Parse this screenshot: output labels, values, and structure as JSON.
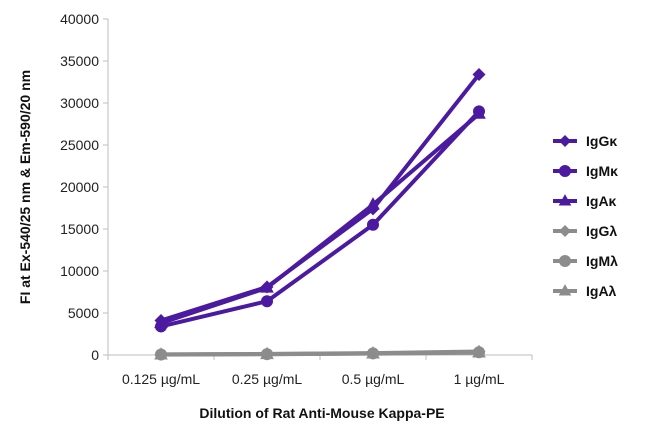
{
  "chart_data": {
    "type": "line",
    "title": "",
    "xlabel": "Dilution of Rat Anti-Mouse Kappa-PE",
    "ylabel": "FI at Ex-540/25 nm & Em-590/20 nm",
    "categories": [
      "0.125 µg/mL",
      "0.25 µg/mL",
      "0.5 µg/mL",
      "1 µg/mL"
    ],
    "ylim": [
      0,
      40000
    ],
    "yticks": [
      0,
      5000,
      10000,
      15000,
      20000,
      25000,
      30000,
      35000,
      40000
    ],
    "grid": false,
    "legend_position": "right",
    "series": [
      {
        "name": "IgGκ",
        "values": [
          4100,
          8100,
          17400,
          33400
        ],
        "color": "#4b1aa0",
        "marker": "diamond"
      },
      {
        "name": "IgMκ",
        "values": [
          3400,
          6400,
          15500,
          29000
        ],
        "color": "#4b1aa0",
        "marker": "circle"
      },
      {
        "name": "IgAκ",
        "values": [
          3800,
          8000,
          17900,
          28700
        ],
        "color": "#4b1aa0",
        "marker": "triangle"
      },
      {
        "name": "IgGλ",
        "values": [
          80,
          130,
          220,
          420
        ],
        "color": "#8c8c8c",
        "marker": "diamond"
      },
      {
        "name": "IgMλ",
        "values": [
          60,
          110,
          190,
          330
        ],
        "color": "#8c8c8c",
        "marker": "circle"
      },
      {
        "name": "IgAλ",
        "values": [
          40,
          90,
          160,
          280
        ],
        "color": "#8c8c8c",
        "marker": "triangle"
      }
    ]
  }
}
